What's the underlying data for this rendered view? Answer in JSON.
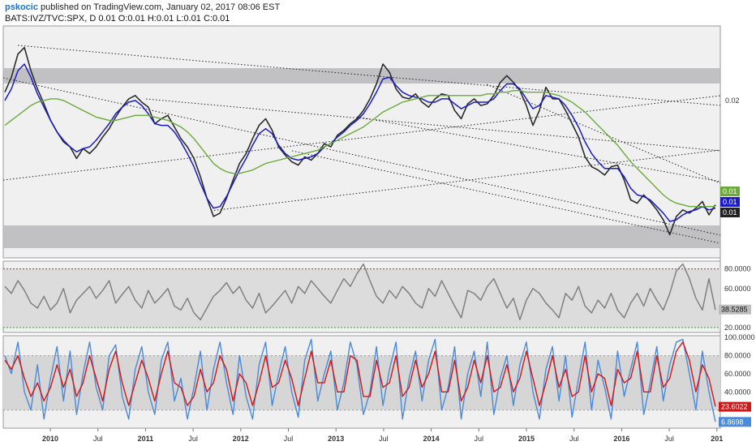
{
  "header": {
    "user": "pskocic",
    "published": " published on TradingView.com, January 02, 2017 08:06 EST",
    "symbol_line": "BATS:IVZ/TVC:SPX, D  0.01 O:0.01 H:0.01 L:0.01 C:0.01"
  },
  "colors": {
    "price": "#2b2b2b",
    "ma_fast": "#1a1ac8",
    "ma_slow": "#6aaa3a",
    "rsi": "#808080",
    "stoch_k": "#4a8ad8",
    "stoch_d": "#d01818",
    "band": "#b8b8bc",
    "rsi_upper": "#e02020",
    "rsi_lower": "#30a030"
  },
  "chart_data": [
    {
      "type": "line",
      "panel": "price",
      "x_tick_labels": [
        "2010",
        "Jul",
        "2011",
        "Jul",
        "2012",
        "Jul",
        "2013",
        "Jul",
        "2014",
        "Jul",
        "2015",
        "Jul",
        "2016",
        "Jul",
        "201"
      ],
      "y_tick_labels": [
        "0.02"
      ],
      "last_value_labels": [
        "0.01",
        "0.01",
        "0.01"
      ],
      "series": [
        {
          "key": "price",
          "values": [
            0.0205,
            0.0214,
            0.0228,
            0.0232,
            0.0218,
            0.0207,
            0.0198,
            0.0188,
            0.0181,
            0.0175,
            0.0172,
            0.0165,
            0.0171,
            0.0168,
            0.0172,
            0.0178,
            0.0183,
            0.019,
            0.0196,
            0.0201,
            0.0203,
            0.0199,
            0.0196,
            0.0186,
            0.0189,
            0.0191,
            0.0184,
            0.0177,
            0.0172,
            0.0165,
            0.0154,
            0.0141,
            0.013,
            0.0132,
            0.0141,
            0.0152,
            0.0162,
            0.0168,
            0.0177,
            0.0185,
            0.0189,
            0.0182,
            0.0172,
            0.0167,
            0.0163,
            0.0161,
            0.0166,
            0.0164,
            0.0168,
            0.0174,
            0.0172,
            0.0179,
            0.0182,
            0.0186,
            0.0189,
            0.0194,
            0.0201,
            0.021,
            0.0222,
            0.0217,
            0.0207,
            0.0202,
            0.0201,
            0.0204,
            0.0199,
            0.0196,
            0.0201,
            0.0204,
            0.0203,
            0.0194,
            0.0189,
            0.0198,
            0.0201,
            0.0197,
            0.0198,
            0.0203,
            0.0211,
            0.0215,
            0.0211,
            0.0206,
            0.0197,
            0.0185,
            0.0194,
            0.0208,
            0.0201,
            0.0201,
            0.0194,
            0.0186,
            0.0178,
            0.0166,
            0.016,
            0.0158,
            0.0155,
            0.016,
            0.0161,
            0.0152,
            0.014,
            0.0138,
            0.0143,
            0.0139,
            0.0134,
            0.0128,
            0.0119,
            0.013,
            0.0134,
            0.0132,
            0.0135,
            0.0139,
            0.0131,
            0.0137
          ],
          "comment": "approx. normalized price ratio read from chart, roughly monthly from late 2009 to end of 2016"
        },
        {
          "key": "ma_fast",
          "values": [
            0.02,
            0.0207,
            0.0218,
            0.0222,
            0.0214,
            0.0204,
            0.0196,
            0.0188,
            0.0181,
            0.0176,
            0.0172,
            0.0169,
            0.0171,
            0.0172,
            0.0176,
            0.0181,
            0.0186,
            0.0192,
            0.0196,
            0.0199,
            0.02,
            0.0197,
            0.0192,
            0.0186,
            0.0185,
            0.0185,
            0.0181,
            0.0175,
            0.0168,
            0.016,
            0.015,
            0.0141,
            0.0135,
            0.0136,
            0.0142,
            0.015,
            0.0158,
            0.0165,
            0.0173,
            0.018,
            0.0183,
            0.018,
            0.0173,
            0.0168,
            0.0165,
            0.0164,
            0.0165,
            0.0166,
            0.0168,
            0.0172,
            0.0174,
            0.0178,
            0.0181,
            0.0185,
            0.0188,
            0.0192,
            0.0198,
            0.0205,
            0.0213,
            0.0214,
            0.0209,
            0.0205,
            0.0203,
            0.0202,
            0.0201,
            0.0199,
            0.0199,
            0.0201,
            0.0201,
            0.0198,
            0.0195,
            0.0197,
            0.0199,
            0.0199,
            0.0199,
            0.0201,
            0.0206,
            0.021,
            0.021,
            0.0207,
            0.0201,
            0.0195,
            0.0197,
            0.0203,
            0.0202,
            0.0201,
            0.0197,
            0.0191,
            0.0184,
            0.0175,
            0.0168,
            0.0163,
            0.0159,
            0.0159,
            0.0159,
            0.0154,
            0.0147,
            0.0143,
            0.0142,
            0.014,
            0.0136,
            0.0132,
            0.0127,
            0.0128,
            0.0131,
            0.0133,
            0.0134,
            0.0136,
            0.0134,
            0.0135
          ]
        },
        {
          "key": "ma_slow",
          "values": [
            0.0185,
            0.0188,
            0.0191,
            0.0194,
            0.0197,
            0.0199,
            0.02,
            0.0201,
            0.0201,
            0.02,
            0.0198,
            0.0196,
            0.0194,
            0.0192,
            0.019,
            0.0189,
            0.0188,
            0.0188,
            0.0189,
            0.019,
            0.0191,
            0.0191,
            0.0191,
            0.019,
            0.0189,
            0.0188,
            0.0186,
            0.0184,
            0.0181,
            0.0177,
            0.0172,
            0.0167,
            0.0162,
            0.0159,
            0.0157,
            0.0156,
            0.0156,
            0.0157,
            0.0158,
            0.016,
            0.0162,
            0.0163,
            0.0164,
            0.0165,
            0.0166,
            0.0167,
            0.0168,
            0.0169,
            0.017,
            0.0172,
            0.0174,
            0.0176,
            0.0178,
            0.018,
            0.0182,
            0.0184,
            0.0187,
            0.019,
            0.0193,
            0.0195,
            0.0197,
            0.0199,
            0.02,
            0.0201,
            0.0202,
            0.0203,
            0.0203,
            0.0203,
            0.0203,
            0.0203,
            0.0203,
            0.0203,
            0.0203,
            0.0203,
            0.0204,
            0.0204,
            0.0205,
            0.0205,
            0.0206,
            0.0206,
            0.0205,
            0.0205,
            0.0205,
            0.0205,
            0.0204,
            0.0203,
            0.0201,
            0.0199,
            0.0196,
            0.0193,
            0.0189,
            0.0185,
            0.0181,
            0.0177,
            0.0173,
            0.0168,
            0.0163,
            0.0159,
            0.0155,
            0.0151,
            0.0147,
            0.0143,
            0.014,
            0.0138,
            0.0137,
            0.0136,
            0.0136,
            0.0136,
            0.0136,
            0.0136
          ]
        }
      ],
      "ylim": [
        0.0105,
        0.0245
      ]
    },
    {
      "type": "line",
      "panel": "rsi",
      "y_tick_labels": [
        "80.0000",
        "60.0000",
        "40.0000",
        "20.0000"
      ],
      "upper_level": 80,
      "lower_level": 20,
      "last_value_label": "38.5285",
      "series": [
        {
          "key": "rsi",
          "values": [
            62,
            55,
            68,
            58,
            45,
            40,
            52,
            38,
            45,
            60,
            35,
            48,
            55,
            62,
            50,
            58,
            68,
            45,
            54,
            62,
            48,
            40,
            58,
            45,
            52,
            60,
            42,
            38,
            50,
            35,
            28,
            40,
            52,
            58,
            66,
            55,
            62,
            48,
            40,
            55,
            35,
            42,
            50,
            58,
            45,
            62,
            55,
            68,
            60,
            52,
            45,
            58,
            70,
            62,
            75,
            85,
            68,
            52,
            45,
            58,
            50,
            62,
            55,
            45,
            40,
            60,
            52,
            68,
            55,
            42,
            30,
            58,
            55,
            48,
            62,
            70,
            55,
            40,
            50,
            28,
            48,
            60,
            55,
            45,
            38,
            30,
            55,
            48,
            62,
            42,
            35,
            48,
            40,
            55,
            38,
            30,
            45,
            55,
            42,
            60,
            48,
            38,
            55,
            78,
            85,
            70,
            50,
            38,
            70,
            38
          ],
          "comment": "approx. oscillator reading"
        }
      ],
      "ylim": [
        15,
        88
      ]
    },
    {
      "type": "line",
      "panel": "stochastic",
      "y_tick_labels": [
        "100.0000",
        "80.0000",
        "60.0000",
        "40.0000"
      ],
      "band_range": [
        20,
        80
      ],
      "last_value_labels": [
        "23.6022",
        "6.8698"
      ],
      "series": [
        {
          "key": "stoch_k",
          "values": [
            80,
            60,
            95,
            40,
            20,
            70,
            10,
            55,
            90,
            30,
            85,
            15,
            60,
            95,
            45,
            20,
            80,
            92,
            35,
            10,
            65,
            90,
            40,
            15,
            75,
            95,
            30,
            55,
            10,
            45,
            85,
            20,
            65,
            95,
            50,
            15,
            80,
            35,
            10,
            70,
            95,
            25,
            60,
            90,
            40,
            12,
            75,
            98,
            30,
            60,
            85,
            20,
            50,
            95,
            70,
            15,
            40,
            90,
            25,
            65,
            95,
            10,
            55,
            85,
            30,
            75,
            98,
            20,
            45,
            90,
            10,
            60,
            85,
            35,
            95,
            15,
            55,
            80,
            25,
            70,
            95,
            40,
            10,
            65,
            90,
            30,
            80,
            12,
            55,
            95,
            20,
            75,
            45,
            10,
            85,
            35,
            65,
            95,
            15,
            50,
            90,
            30,
            70,
            95,
            98,
            60,
            20,
            85,
            40,
            7
          ]
        },
        {
          "key": "stoch_d",
          "values": [
            75,
            65,
            80,
            55,
            35,
            50,
            30,
            45,
            70,
            45,
            65,
            35,
            50,
            80,
            55,
            30,
            65,
            85,
            50,
            25,
            50,
            75,
            55,
            30,
            60,
            85,
            50,
            45,
            25,
            35,
            65,
            40,
            50,
            80,
            65,
            30,
            60,
            50,
            25,
            50,
            80,
            45,
            50,
            75,
            55,
            25,
            55,
            85,
            50,
            50,
            75,
            40,
            40,
            80,
            75,
            35,
            35,
            75,
            45,
            50,
            80,
            35,
            45,
            75,
            45,
            60,
            85,
            40,
            40,
            75,
            30,
            45,
            75,
            50,
            80,
            40,
            45,
            70,
            40,
            55,
            85,
            55,
            25,
            50,
            80,
            45,
            65,
            35,
            40,
            80,
            40,
            60,
            55,
            25,
            65,
            50,
            55,
            85,
            40,
            40,
            80,
            45,
            55,
            85,
            95,
            75,
            40,
            70,
            55,
            24
          ]
        }
      ],
      "ylim": [
        0,
        102
      ]
    }
  ]
}
